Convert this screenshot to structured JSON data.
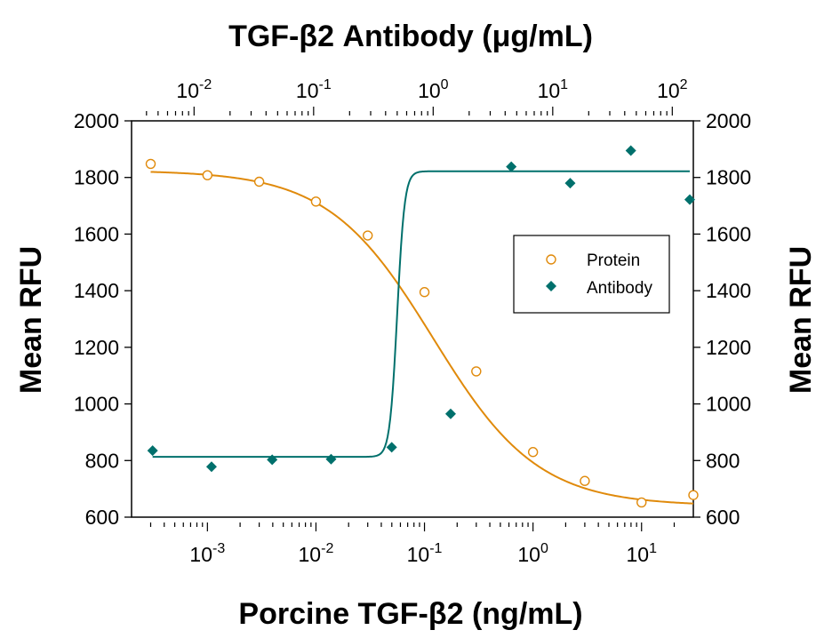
{
  "chart_data": {
    "type": "scatter",
    "title": "TGF-β2 Antibody (μg/mL)",
    "xlabel": "Porcine TGF-β2 (ng/mL)",
    "ylabel_left": "Mean RFU",
    "ylabel_right": "Mean RFU",
    "x_scale": "log",
    "x_range": [
      0.0002,
      30
    ],
    "x_ticks": [
      {
        "value": 0.001,
        "base": "10",
        "exp": "-3"
      },
      {
        "value": 0.01,
        "base": "10",
        "exp": "-2"
      },
      {
        "value": 0.1,
        "base": "10",
        "exp": "-1"
      },
      {
        "value": 1,
        "base": "10",
        "exp": "0"
      },
      {
        "value": 10,
        "base": "10",
        "exp": "1"
      }
    ],
    "top_axis": {
      "scale": "log",
      "range": [
        0.003,
        150
      ],
      "ticks": [
        {
          "value": 0.01,
          "base": "10",
          "exp": "-2"
        },
        {
          "value": 0.1,
          "base": "10",
          "exp": "-1"
        },
        {
          "value": 1,
          "base": "10",
          "exp": "0"
        },
        {
          "value": 10,
          "base": "10",
          "exp": "1"
        },
        {
          "value": 100,
          "base": "10",
          "exp": "2"
        }
      ]
    },
    "ylim": [
      600,
      2000
    ],
    "y_ticks": [
      "600",
      "800",
      "1000",
      "1200",
      "1400",
      "1600",
      "1800",
      "2000"
    ],
    "grid": false,
    "legend_position": "right",
    "series": [
      {
        "name": "Protein",
        "marker": "open-circle",
        "color": "#E08A0B",
        "axis": "bottom",
        "x": [
          0.0003,
          0.001,
          0.003,
          0.01,
          0.03,
          0.1,
          0.3,
          1,
          3,
          10,
          30
        ],
        "y": [
          1848,
          1808,
          1785,
          1715,
          1595,
          1395,
          1115,
          830,
          728,
          652,
          678
        ],
        "fit": {
          "bottom": 640,
          "top": 1825,
          "ec50": 0.12,
          "hill": 0.9
        }
      },
      {
        "name": "Antibody",
        "marker": "filled-diamond",
        "color": "#00706C",
        "axis": "top",
        "x": [
          0.0045,
          0.014,
          0.045,
          0.14,
          0.45,
          1.4,
          4.5,
          14,
          45,
          140
        ],
        "y": [
          835,
          778,
          803,
          805,
          847,
          965,
          1838,
          1780,
          1895,
          1722
        ],
        "fit": {
          "bottom": 813,
          "top": 1822,
          "ec50": 0.5,
          "hill": 14
        }
      }
    ]
  }
}
